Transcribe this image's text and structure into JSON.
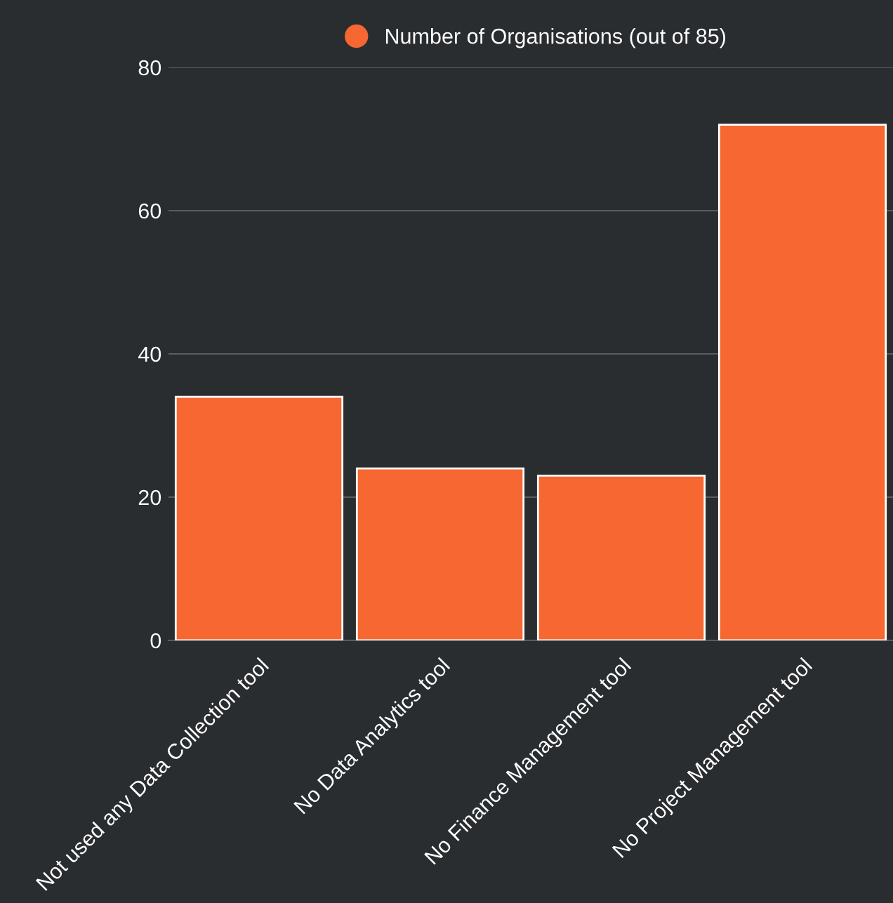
{
  "chart_data": {
    "type": "bar",
    "categories": [
      "Not used any Data Collection tool",
      "No Data Analytics tool",
      "No Finance Management tool",
      "No Project Management tool"
    ],
    "series": [
      {
        "name": "Number of Organisations (out of 85)",
        "color": "#f66731",
        "values": [
          34,
          24,
          23,
          72
        ]
      }
    ],
    "ylim": [
      0,
      80
    ],
    "yticks": [
      0,
      20,
      40,
      60,
      80
    ],
    "grid": "y",
    "legend": "top"
  }
}
